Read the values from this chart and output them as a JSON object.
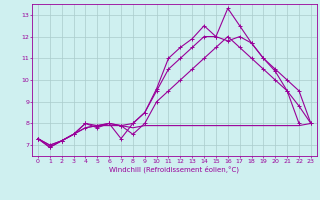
{
  "xlabel": "Windchill (Refroidissement éolien,°C)",
  "x": [
    0,
    1,
    2,
    3,
    4,
    5,
    6,
    7,
    8,
    9,
    10,
    11,
    12,
    13,
    14,
    15,
    16,
    17,
    18,
    19,
    20,
    21,
    22,
    23
  ],
  "line1": [
    7.3,
    6.9,
    7.2,
    7.5,
    8.0,
    7.8,
    8.0,
    7.3,
    8.0,
    8.5,
    9.6,
    11.0,
    11.5,
    11.9,
    12.5,
    12.0,
    13.3,
    12.5,
    11.7,
    11.0,
    10.4,
    9.5,
    8.0,
    null
  ],
  "line2": [
    7.3,
    6.9,
    7.2,
    7.5,
    8.0,
    7.9,
    8.0,
    7.9,
    8.0,
    8.5,
    9.5,
    10.5,
    11.0,
    11.5,
    12.0,
    12.0,
    11.8,
    12.0,
    11.7,
    11.0,
    10.5,
    10.0,
    9.5,
    8.0
  ],
  "line3": [
    7.3,
    7.0,
    7.2,
    7.5,
    7.8,
    7.9,
    8.0,
    7.9,
    7.5,
    8.0,
    9.0,
    9.5,
    10.0,
    10.5,
    11.0,
    11.5,
    12.0,
    11.5,
    11.0,
    10.5,
    10.0,
    9.5,
    8.8,
    8.0
  ],
  "line4": [
    7.3,
    7.0,
    7.2,
    7.5,
    7.8,
    7.9,
    7.9,
    7.9,
    7.8,
    7.9,
    7.9,
    7.9,
    7.9,
    7.9,
    7.9,
    7.9,
    7.9,
    7.9,
    7.9,
    7.9,
    7.9,
    7.9,
    7.9,
    8.0
  ],
  "bg_color": "#cff0f0",
  "line_color": "#990099",
  "grid_color": "#aacccc",
  "ylim": [
    6.5,
    13.5
  ],
  "xlim": [
    -0.5,
    23.5
  ],
  "yticks": [
    7,
    8,
    9,
    10,
    11,
    12,
    13
  ],
  "xticks": [
    0,
    1,
    2,
    3,
    4,
    5,
    6,
    7,
    8,
    9,
    10,
    11,
    12,
    13,
    14,
    15,
    16,
    17,
    18,
    19,
    20,
    21,
    22,
    23
  ],
  "figsize": [
    3.2,
    2.0
  ],
  "dpi": 100
}
